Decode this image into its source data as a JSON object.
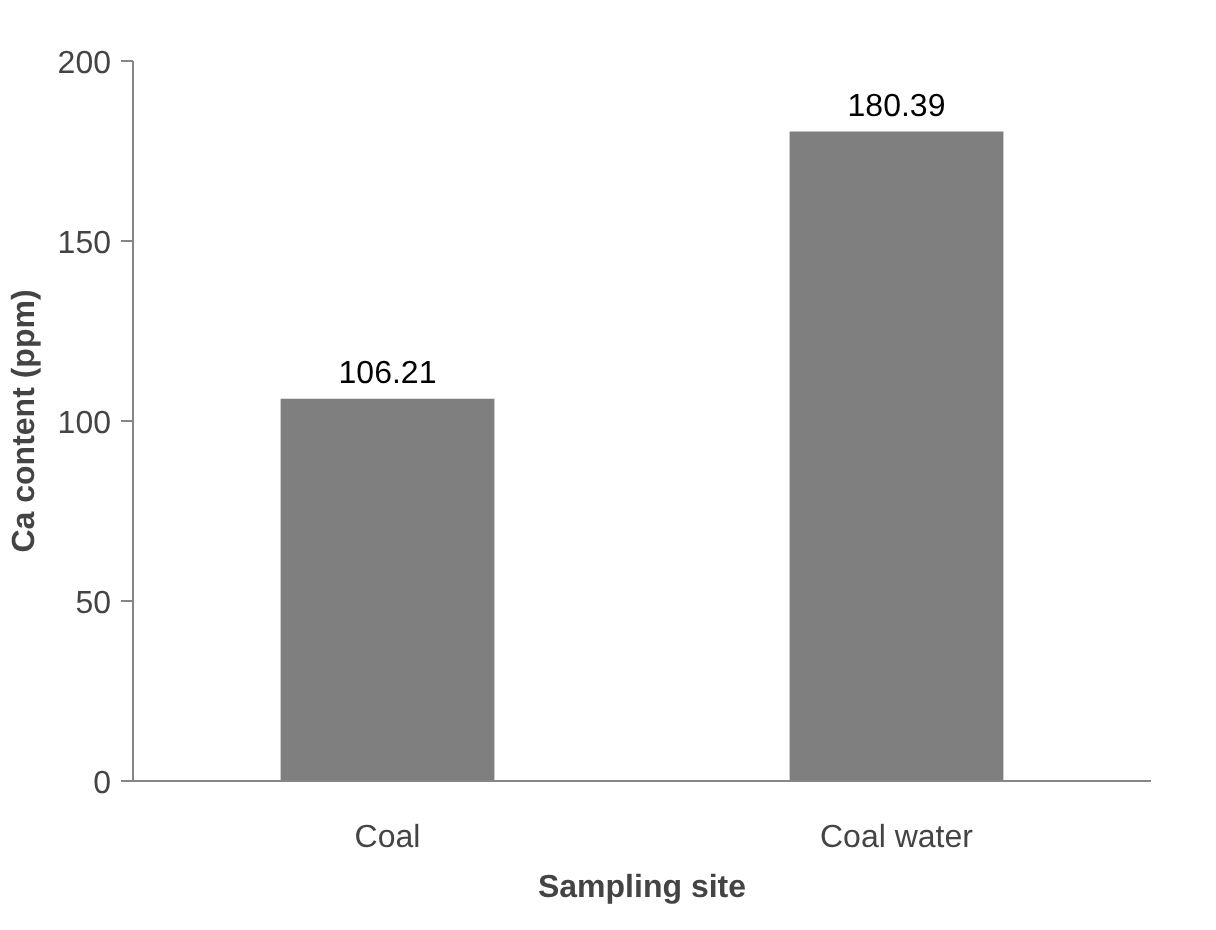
{
  "chart_data": {
    "type": "bar",
    "categories": [
      "Coal",
      "Coal water"
    ],
    "values": [
      106.21,
      180.39
    ],
    "color": "#7f7f7f",
    "xlabel": "Sampling site",
    "ylabel": "Ca content (ppm)",
    "ylim": [
      0,
      200
    ],
    "yticks": [
      0,
      50,
      100,
      150,
      200
    ],
    "grid": false,
    "data_labels": true
  }
}
